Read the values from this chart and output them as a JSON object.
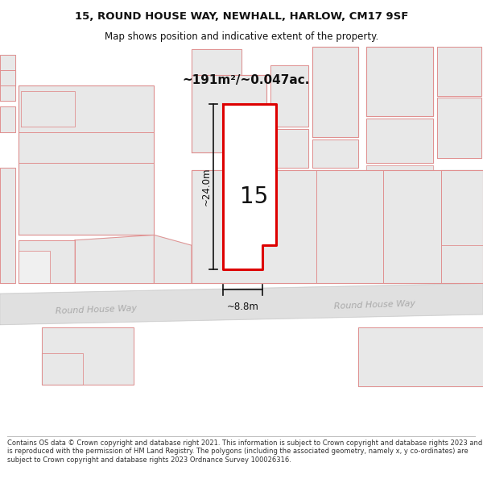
{
  "title_line1": "15, ROUND HOUSE WAY, NEWHALL, HARLOW, CM17 9SF",
  "title_line2": "Map shows position and indicative extent of the property.",
  "area_text": "~191m²/~0.047ac.",
  "dim_width": "~8.8m",
  "dim_height": "~24.0m",
  "label_number": "15",
  "road_label_left": "Round House Way",
  "road_label_right": "Round House Way",
  "footer_text": "Contains OS data © Crown copyright and database right 2021. This information is subject to Crown copyright and database rights 2023 and is reproduced with the permission of HM Land Registry. The polygons (including the associated geometry, namely x, y co-ordinates) are subject to Crown copyright and database rights 2023 Ordnance Survey 100026316.",
  "bg_color": "#ffffff",
  "map_bg": "#ffffff",
  "highlight_color": "#dd0000",
  "neighbor_fill": "#e8e8e8",
  "neighbor_edge": "#e09090",
  "road_fill": "#e0e0e0",
  "road_edge": "#cccccc",
  "text_color": "#111111",
  "footer_color": "#333333",
  "dim_color": "#111111"
}
